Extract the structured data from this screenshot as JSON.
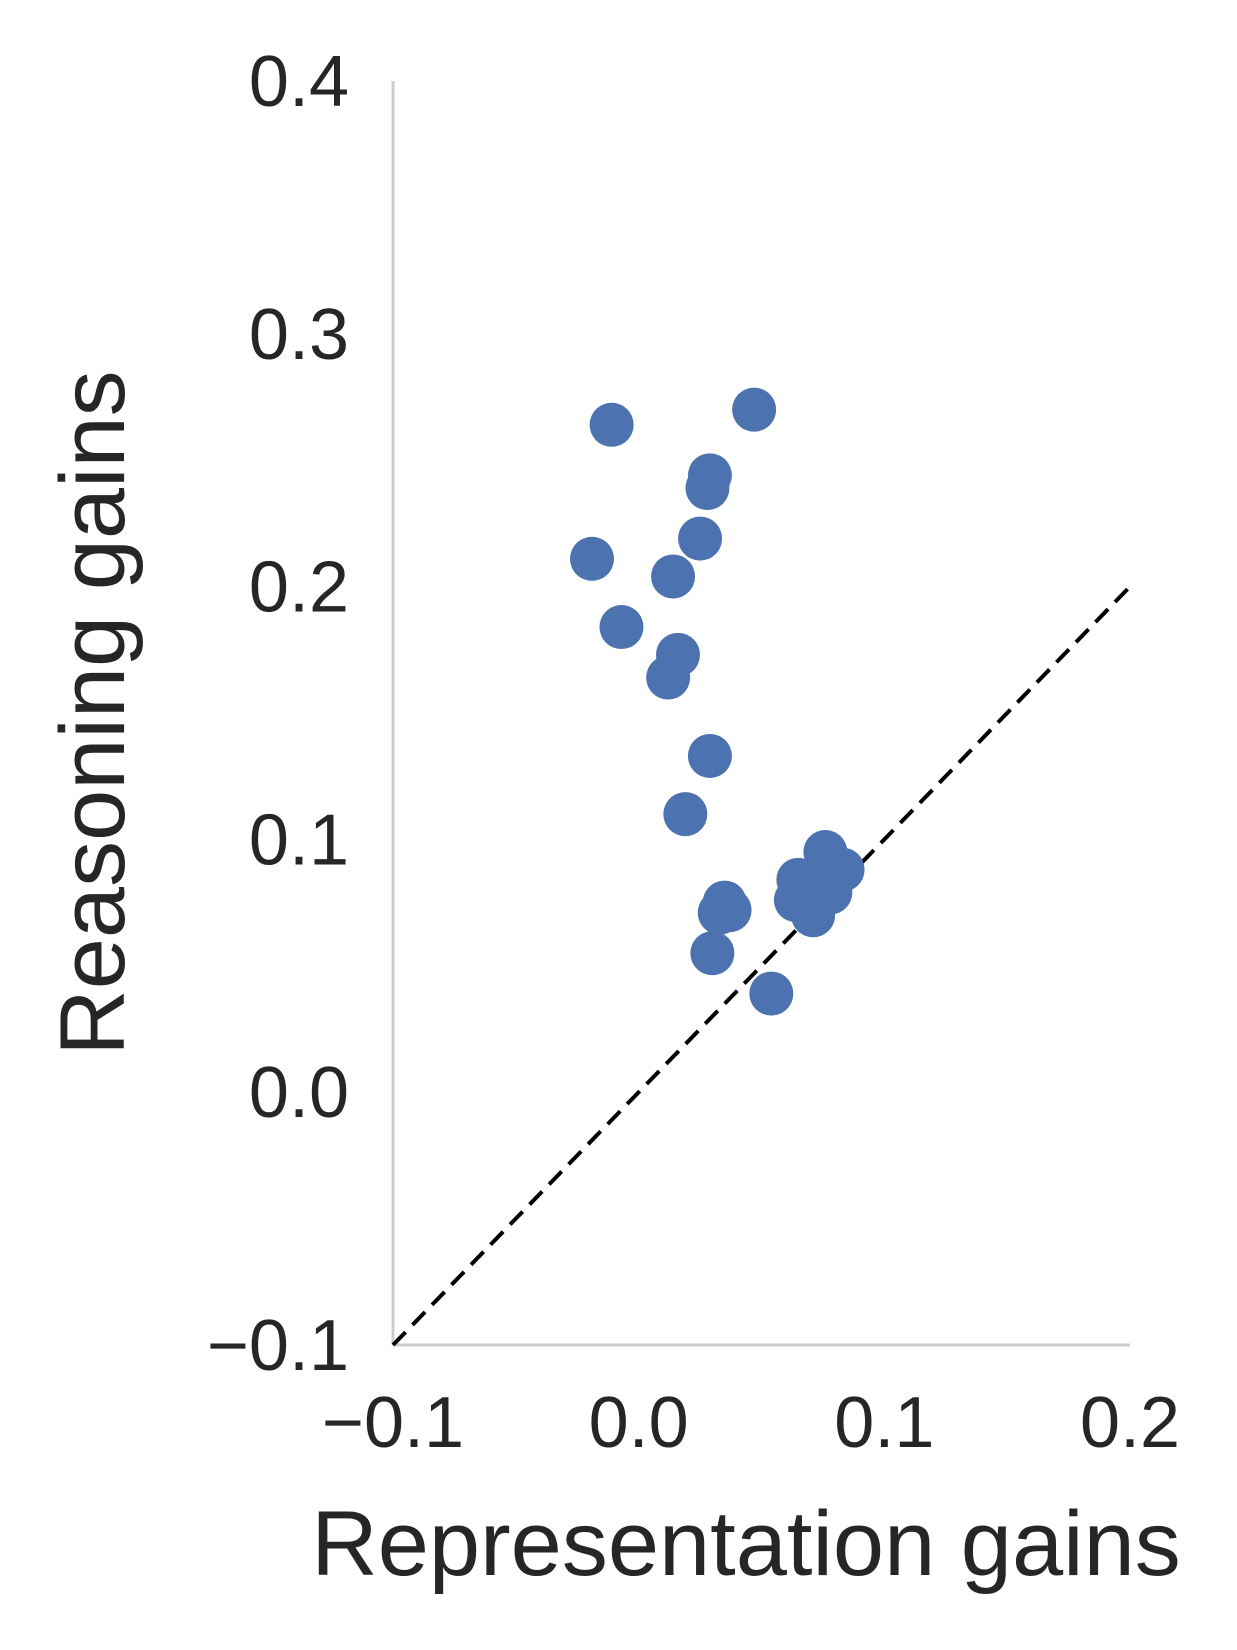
{
  "chart_data": {
    "type": "scatter",
    "title": "",
    "xlabel": "Representation gains",
    "ylabel": "Reasoning gains",
    "xlim": [
      -0.1,
      0.2
    ],
    "ylim": [
      -0.1,
      0.4
    ],
    "xticks": [
      "−0.1",
      "0.0",
      "0.1",
      "0.2"
    ],
    "yticks": [
      "−0.1",
      "0.0",
      "0.1",
      "0.2",
      "0.3",
      "0.4"
    ],
    "xtick_values": [
      -0.1,
      0.0,
      0.1,
      0.2
    ],
    "ytick_values": [
      -0.1,
      0.0,
      0.1,
      0.2,
      0.3,
      0.4
    ],
    "grid": false,
    "reference_line": {
      "from": [
        -0.1,
        -0.1
      ],
      "to": [
        0.2,
        0.2
      ],
      "style": "dashed",
      "color": "#000000"
    },
    "point_color": "#4c72b0",
    "points": [
      {
        "x": -0.011,
        "y": 0.264
      },
      {
        "x": 0.047,
        "y": 0.27
      },
      {
        "x": 0.029,
        "y": 0.244
      },
      {
        "x": 0.028,
        "y": 0.239
      },
      {
        "x": 0.025,
        "y": 0.219
      },
      {
        "x": -0.019,
        "y": 0.211
      },
      {
        "x": 0.014,
        "y": 0.204
      },
      {
        "x": -0.007,
        "y": 0.184
      },
      {
        "x": 0.016,
        "y": 0.173
      },
      {
        "x": 0.012,
        "y": 0.164
      },
      {
        "x": 0.029,
        "y": 0.133
      },
      {
        "x": 0.019,
        "y": 0.11
      },
      {
        "x": 0.076,
        "y": 0.095
      },
      {
        "x": 0.083,
        "y": 0.088
      },
      {
        "x": 0.065,
        "y": 0.084
      },
      {
        "x": 0.077,
        "y": 0.082
      },
      {
        "x": 0.078,
        "y": 0.079
      },
      {
        "x": 0.064,
        "y": 0.076
      },
      {
        "x": 0.069,
        "y": 0.074
      },
      {
        "x": 0.071,
        "y": 0.07
      },
      {
        "x": 0.035,
        "y": 0.075
      },
      {
        "x": 0.037,
        "y": 0.072
      },
      {
        "x": 0.033,
        "y": 0.071
      },
      {
        "x": 0.03,
        "y": 0.055
      },
      {
        "x": 0.054,
        "y": 0.039
      }
    ]
  }
}
